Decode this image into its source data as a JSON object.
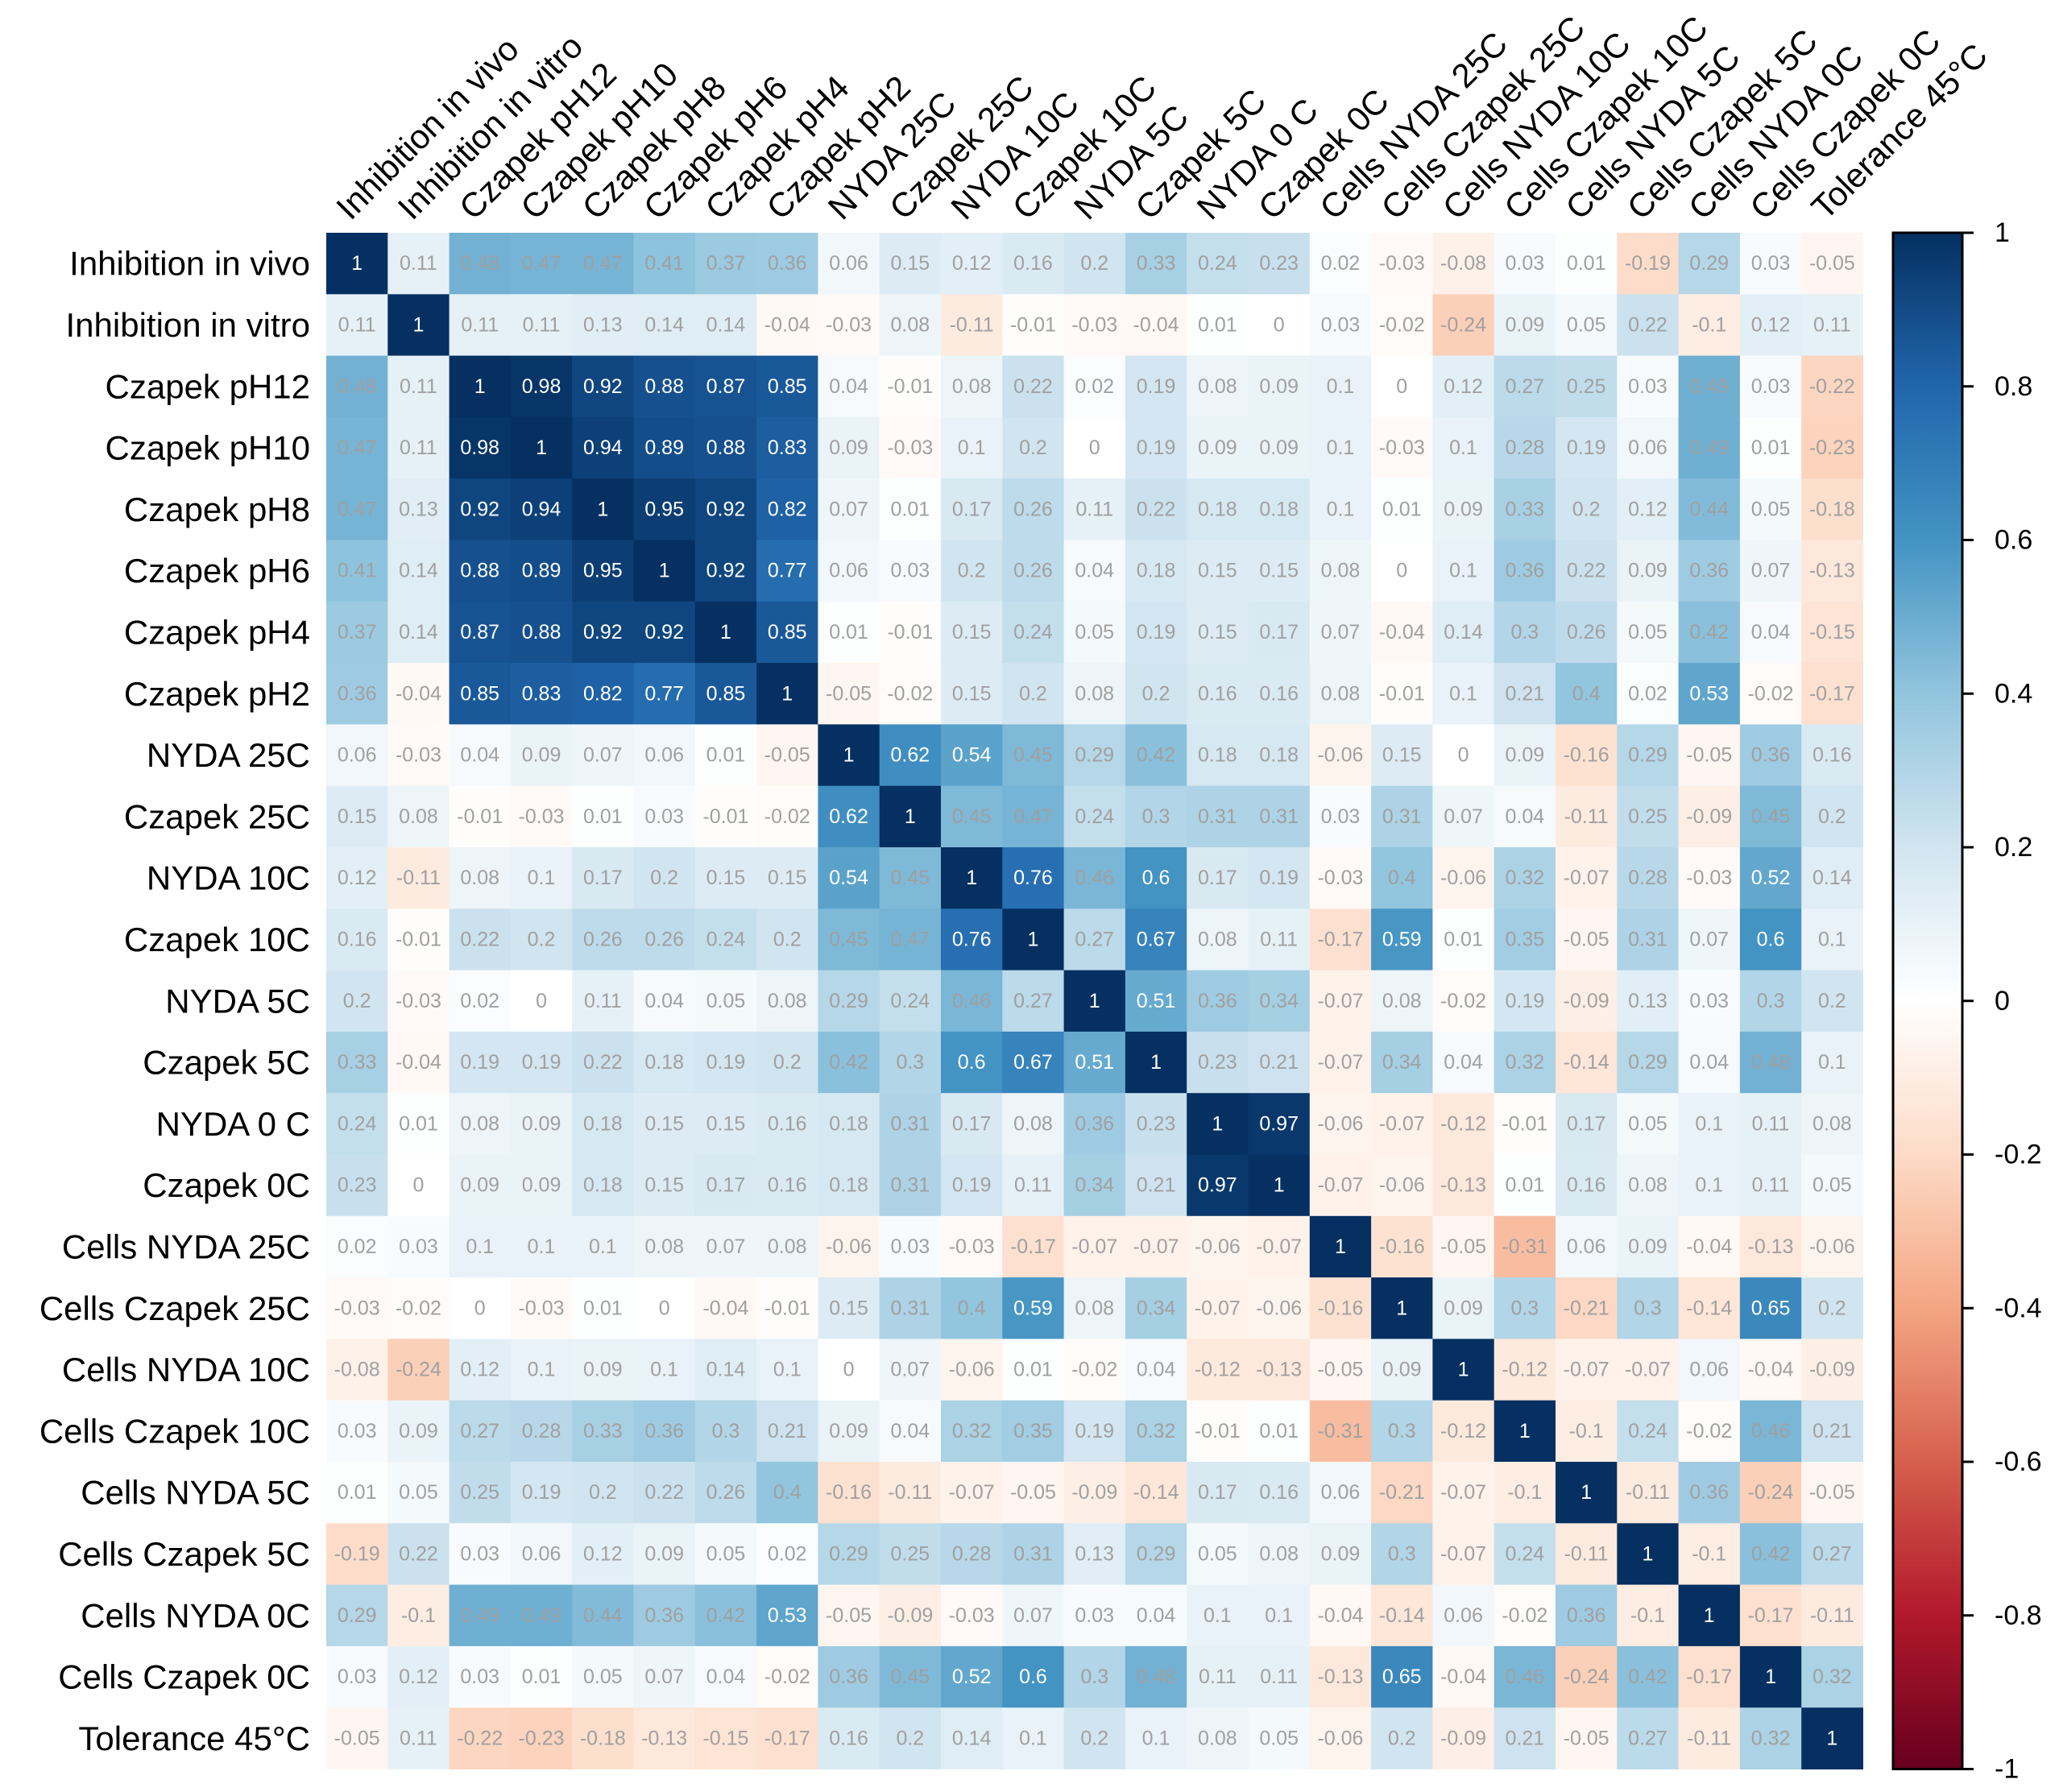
{
  "chart_data": {
    "type": "heatmap",
    "title": "",
    "labels": [
      "Inhibition in vivo",
      "Inhibition in vitro",
      "Czapek pH12",
      "Czapek pH10",
      "Czapek pH8",
      "Czapek pH6",
      "Czapek pH4",
      "Czapek pH2",
      "NYDA 25C",
      "Czapek  25C",
      "NYDA 10C",
      "Czapek 10C",
      "NYDA 5C",
      "Czapek 5C",
      "NYDA 0 C",
      "Czapek 0C",
      "Cells NYDA 25C",
      "Cells Czapek 25C",
      "Cells NYDA 10C",
      "Cells Czapek 10C",
      "Cells NYDA 5C",
      "Cells Czapek 5C",
      "Cells NYDA 0C",
      "Cells Czapek 0C",
      "Tolerance 45°C"
    ],
    "matrix": [
      [
        1,
        0.11,
        0.48,
        0.47,
        0.47,
        0.41,
        0.37,
        0.36,
        0.06,
        0.15,
        0.12,
        0.16,
        0.2,
        0.33,
        0.24,
        0.23,
        0.02,
        -0.03,
        -0.08,
        0.03,
        0.01,
        -0.19,
        0.29,
        0.03,
        -0.05
      ],
      [
        0.11,
        1,
        0.11,
        0.11,
        0.13,
        0.14,
        0.14,
        -0.04,
        -0.03,
        0.08,
        -0.11,
        -0.01,
        -0.03,
        -0.04,
        0.01,
        0,
        0.03,
        -0.02,
        -0.24,
        0.09,
        0.05,
        0.22,
        -0.1,
        0.12,
        0.11
      ],
      [
        0.48,
        0.11,
        1,
        0.98,
        0.92,
        0.88,
        0.87,
        0.85,
        0.04,
        -0.01,
        0.08,
        0.22,
        0.02,
        0.19,
        0.08,
        0.09,
        0.1,
        0,
        0.12,
        0.27,
        0.25,
        0.03,
        0.49,
        0.03,
        -0.22
      ],
      [
        0.47,
        0.11,
        0.98,
        1,
        0.94,
        0.89,
        0.88,
        0.83,
        0.09,
        -0.03,
        0.1,
        0.2,
        0,
        0.19,
        0.09,
        0.09,
        0.1,
        -0.03,
        0.1,
        0.28,
        0.19,
        0.06,
        0.49,
        0.01,
        -0.23
      ],
      [
        0.47,
        0.13,
        0.92,
        0.94,
        1,
        0.95,
        0.92,
        0.82,
        0.07,
        0.01,
        0.17,
        0.26,
        0.11,
        0.22,
        0.18,
        0.18,
        0.1,
        0.01,
        0.09,
        0.33,
        0.2,
        0.12,
        0.44,
        0.05,
        -0.18
      ],
      [
        0.41,
        0.14,
        0.88,
        0.89,
        0.95,
        1,
        0.92,
        0.77,
        0.06,
        0.03,
        0.2,
        0.26,
        0.04,
        0.18,
        0.15,
        0.15,
        0.08,
        0,
        0.1,
        0.36,
        0.22,
        0.09,
        0.36,
        0.07,
        -0.13
      ],
      [
        0.37,
        0.14,
        0.87,
        0.88,
        0.92,
        0.92,
        1,
        0.85,
        0.01,
        -0.01,
        0.15,
        0.24,
        0.05,
        0.19,
        0.15,
        0.17,
        0.07,
        -0.04,
        0.14,
        0.3,
        0.26,
        0.05,
        0.42,
        0.04,
        -0.15
      ],
      [
        0.36,
        -0.04,
        0.85,
        0.83,
        0.82,
        0.77,
        0.85,
        1,
        -0.05,
        -0.02,
        0.15,
        0.2,
        0.08,
        0.2,
        0.16,
        0.16,
        0.08,
        -0.01,
        0.1,
        0.21,
        0.4,
        0.02,
        0.53,
        -0.02,
        -0.17
      ],
      [
        0.06,
        -0.03,
        0.04,
        0.09,
        0.07,
        0.06,
        0.01,
        -0.05,
        1,
        0.62,
        0.54,
        0.45,
        0.29,
        0.42,
        0.18,
        0.18,
        -0.06,
        0.15,
        0,
        0.09,
        -0.16,
        0.29,
        -0.05,
        0.36,
        0.16
      ],
      [
        0.15,
        0.08,
        -0.01,
        -0.03,
        0.01,
        0.03,
        -0.01,
        -0.02,
        0.62,
        1,
        0.45,
        0.47,
        0.24,
        0.3,
        0.31,
        0.31,
        0.03,
        0.31,
        0.07,
        0.04,
        -0.11,
        0.25,
        -0.09,
        0.45,
        0.2
      ],
      [
        0.12,
        -0.11,
        0.08,
        0.1,
        0.17,
        0.2,
        0.15,
        0.15,
        0.54,
        0.45,
        1,
        0.76,
        0.46,
        0.6,
        0.17,
        0.19,
        -0.03,
        0.4,
        -0.06,
        0.32,
        -0.07,
        0.28,
        -0.03,
        0.52,
        0.14
      ],
      [
        0.16,
        -0.01,
        0.22,
        0.2,
        0.26,
        0.26,
        0.24,
        0.2,
        0.45,
        0.47,
        0.76,
        1,
        0.27,
        0.67,
        0.08,
        0.11,
        -0.17,
        0.59,
        0.01,
        0.35,
        -0.05,
        0.31,
        0.07,
        0.6,
        0.1
      ],
      [
        0.2,
        -0.03,
        0.02,
        0,
        0.11,
        0.04,
        0.05,
        0.08,
        0.29,
        0.24,
        0.46,
        0.27,
        1,
        0.51,
        0.36,
        0.34,
        -0.07,
        0.08,
        -0.02,
        0.19,
        -0.09,
        0.13,
        0.03,
        0.3,
        0.2
      ],
      [
        0.33,
        -0.04,
        0.19,
        0.19,
        0.22,
        0.18,
        0.19,
        0.2,
        0.42,
        0.3,
        0.6,
        0.67,
        0.51,
        1,
        0.23,
        0.21,
        -0.07,
        0.34,
        0.04,
        0.32,
        -0.14,
        0.29,
        0.04,
        0.48,
        0.1
      ],
      [
        0.24,
        0.01,
        0.08,
        0.09,
        0.18,
        0.15,
        0.15,
        0.16,
        0.18,
        0.31,
        0.17,
        0.08,
        0.36,
        0.23,
        1,
        0.97,
        -0.06,
        -0.07,
        -0.12,
        -0.01,
        0.17,
        0.05,
        0.1,
        0.11,
        0.08
      ],
      [
        0.23,
        0,
        0.09,
        0.09,
        0.18,
        0.15,
        0.17,
        0.16,
        0.18,
        0.31,
        0.19,
        0.11,
        0.34,
        0.21,
        0.97,
        1,
        -0.07,
        -0.06,
        -0.13,
        0.01,
        0.16,
        0.08,
        0.1,
        0.11,
        0.05
      ],
      [
        0.02,
        0.03,
        0.1,
        0.1,
        0.1,
        0.08,
        0.07,
        0.08,
        -0.06,
        0.03,
        -0.03,
        -0.17,
        -0.07,
        -0.07,
        -0.06,
        -0.07,
        1,
        -0.16,
        -0.05,
        -0.31,
        0.06,
        0.09,
        -0.04,
        -0.13,
        -0.06
      ],
      [
        -0.03,
        -0.02,
        0,
        -0.03,
        0.01,
        0,
        -0.04,
        -0.01,
        0.15,
        0.31,
        0.4,
        0.59,
        0.08,
        0.34,
        -0.07,
        -0.06,
        -0.16,
        1,
        0.09,
        0.3,
        -0.21,
        0.3,
        -0.14,
        0.65,
        0.2
      ],
      [
        -0.08,
        -0.24,
        0.12,
        0.1,
        0.09,
        0.1,
        0.14,
        0.1,
        0,
        0.07,
        -0.06,
        0.01,
        -0.02,
        0.04,
        -0.12,
        -0.13,
        -0.05,
        0.09,
        1,
        -0.12,
        -0.07,
        -0.07,
        0.06,
        -0.04,
        -0.09
      ],
      [
        0.03,
        0.09,
        0.27,
        0.28,
        0.33,
        0.36,
        0.3,
        0.21,
        0.09,
        0.04,
        0.32,
        0.35,
        0.19,
        0.32,
        -0.01,
        0.01,
        -0.31,
        0.3,
        -0.12,
        1,
        -0.1,
        0.24,
        -0.02,
        0.46,
        0.21
      ],
      [
        0.01,
        0.05,
        0.25,
        0.19,
        0.2,
        0.22,
        0.26,
        0.4,
        -0.16,
        -0.11,
        -0.07,
        -0.05,
        -0.09,
        -0.14,
        0.17,
        0.16,
        0.06,
        -0.21,
        -0.07,
        -0.1,
        1,
        -0.11,
        0.36,
        -0.24,
        -0.05
      ],
      [
        -0.19,
        0.22,
        0.03,
        0.06,
        0.12,
        0.09,
        0.05,
        0.02,
        0.29,
        0.25,
        0.28,
        0.31,
        0.13,
        0.29,
        0.05,
        0.08,
        0.09,
        0.3,
        -0.07,
        0.24,
        -0.11,
        1,
        -0.1,
        0.42,
        0.27
      ],
      [
        0.29,
        -0.1,
        0.49,
        0.49,
        0.44,
        0.36,
        0.42,
        0.53,
        -0.05,
        -0.09,
        -0.03,
        0.07,
        0.03,
        0.04,
        0.1,
        0.1,
        -0.04,
        -0.14,
        0.06,
        -0.02,
        0.36,
        -0.1,
        1,
        -0.17,
        -0.11
      ],
      [
        0.03,
        0.12,
        0.03,
        0.01,
        0.05,
        0.07,
        0.04,
        -0.02,
        0.36,
        0.45,
        0.52,
        0.6,
        0.3,
        0.48,
        0.11,
        0.11,
        -0.13,
        0.65,
        -0.04,
        0.46,
        -0.24,
        0.42,
        -0.17,
        1,
        0.32
      ],
      [
        -0.05,
        0.11,
        -0.22,
        -0.23,
        -0.18,
        -0.13,
        -0.15,
        -0.17,
        0.16,
        0.2,
        0.14,
        0.1,
        0.2,
        0.1,
        0.08,
        0.05,
        -0.06,
        0.2,
        -0.09,
        0.21,
        -0.05,
        0.27,
        -0.11,
        0.32,
        1
      ]
    ],
    "colorbar": {
      "range": [
        -1,
        1
      ],
      "ticks": [
        "1",
        "0.8",
        "0.6",
        "0.4",
        "0.2",
        "0",
        "-0.2",
        "-0.4",
        "-0.6",
        "-0.8",
        "-1"
      ],
      "colors": [
        "#67001F",
        "#B2182B",
        "#D6604D",
        "#F4A582",
        "#FDDBC7",
        "#FFFFFF",
        "#D1E5F0",
        "#92C5DE",
        "#4393C3",
        "#2166AC",
        "#053061"
      ]
    },
    "legend": "right"
  }
}
